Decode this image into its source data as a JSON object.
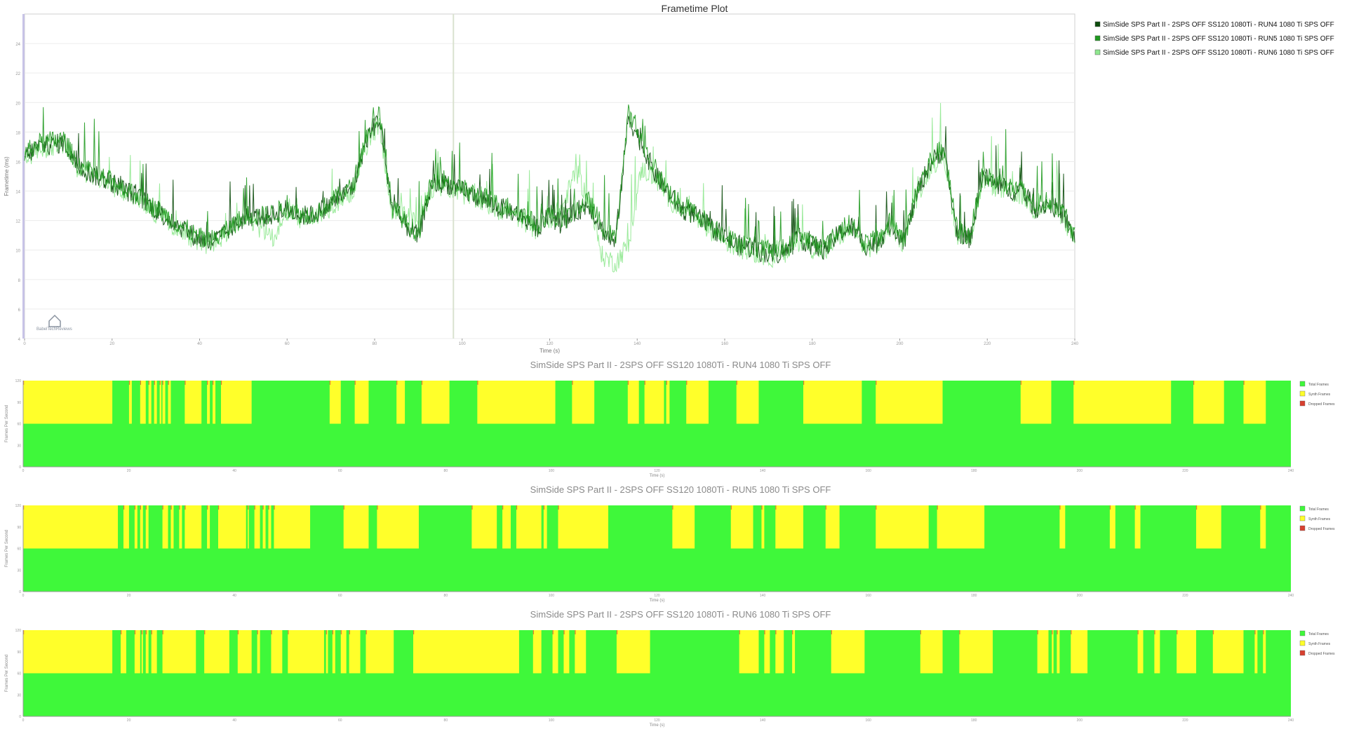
{
  "chart_data": [
    {
      "type": "line",
      "title": "Frametime Plot",
      "xlabel": "Time (s)",
      "ylabel": "Frametime (ms)",
      "xlim": [
        0,
        240
      ],
      "ylim": [
        4,
        26
      ],
      "x_ticks": [
        "0",
        "20",
        "40",
        "60",
        "80",
        "100",
        "120",
        "140",
        "160",
        "180",
        "200",
        "220",
        "240"
      ],
      "y_ticks": [
        "4",
        "6",
        "8",
        "10",
        "12",
        "14",
        "16",
        "18",
        "20",
        "22",
        "24"
      ],
      "grid": true,
      "legend_position": "top-right",
      "watermark": "BabelTechReviews",
      "series": [
        {
          "name": "SimSide SPS Part II - 2SPS OFF SS120 1080Ti - RUN4 1080 Ti SPS OFF",
          "color": "#0c4d0c",
          "x": [
            0,
            3,
            6,
            9,
            12,
            15,
            18,
            21,
            24,
            27,
            30,
            33,
            36,
            39,
            42,
            45,
            48,
            51,
            54,
            57,
            60,
            63,
            66,
            69,
            72,
            75,
            78,
            81,
            84,
            87,
            90,
            93,
            96,
            99,
            102,
            105,
            108,
            111,
            114,
            117,
            120,
            123,
            126,
            129,
            132,
            135,
            138,
            141,
            144,
            147,
            150,
            153,
            156,
            159,
            162,
            165,
            168,
            171,
            174,
            177,
            180,
            183,
            186,
            189,
            192,
            195,
            198,
            201,
            204,
            207,
            210,
            213,
            216,
            219,
            222,
            225,
            228,
            231,
            234,
            237,
            240
          ],
          "y": [
            16.3,
            17.0,
            17.1,
            17.3,
            15.8,
            15.2,
            14.8,
            14.4,
            13.9,
            13.4,
            12.7,
            12.1,
            11.5,
            10.9,
            10.5,
            10.9,
            11.7,
            12.3,
            12.2,
            12.4,
            12.8,
            12.3,
            12.4,
            12.9,
            13.6,
            14.2,
            17.4,
            19.0,
            12.8,
            11.7,
            10.9,
            14.4,
            14.6,
            14.1,
            13.8,
            13.4,
            12.9,
            12.7,
            12.2,
            11.5,
            12.3,
            11.7,
            12.6,
            13.1,
            11.4,
            10.4,
            19.0,
            17.2,
            15.2,
            13.9,
            12.8,
            12.4,
            11.7,
            11.1,
            10.4,
            10.2,
            9.9,
            9.7,
            9.9,
            10.8,
            10.3,
            10.0,
            11.1,
            11.6,
            10.3,
            10.5,
            11.8,
            10.6,
            13.9,
            15.9,
            16.8,
            11.3,
            10.7,
            15.0,
            14.4,
            14.1,
            13.9,
            12.8,
            13.2,
            12.5,
            10.8
          ]
        },
        {
          "name": "SimSide SPS Part II - 2SPS OFF SS120 1080Ti - RUN5 1080 Ti SPS OFF",
          "color": "#1f9a1f",
          "x": [
            0,
            3,
            6,
            9,
            12,
            15,
            18,
            21,
            24,
            27,
            30,
            33,
            36,
            39,
            42,
            45,
            48,
            51,
            54,
            57,
            60,
            63,
            66,
            69,
            72,
            75,
            78,
            81,
            84,
            87,
            90,
            93,
            96,
            99,
            102,
            105,
            108,
            111,
            114,
            117,
            120,
            123,
            126,
            129,
            132,
            135,
            138,
            141,
            144,
            147,
            150,
            153,
            156,
            159,
            162,
            165,
            168,
            171,
            174,
            177,
            180,
            183,
            186,
            189,
            192,
            195,
            198,
            201,
            204,
            207,
            210,
            213,
            216,
            219,
            222,
            225,
            228,
            231,
            234,
            237,
            240
          ],
          "y": [
            16.5,
            17.2,
            17.4,
            17.5,
            15.9,
            15.3,
            14.9,
            14.5,
            14.0,
            13.5,
            12.8,
            12.2,
            11.6,
            11.0,
            10.6,
            11.0,
            11.8,
            12.4,
            12.3,
            12.5,
            12.9,
            12.4,
            12.5,
            13.0,
            13.7,
            14.3,
            17.6,
            19.3,
            12.9,
            11.9,
            11.1,
            14.6,
            14.8,
            14.3,
            13.9,
            13.6,
            13.1,
            12.9,
            12.4,
            11.7,
            12.5,
            11.9,
            12.8,
            13.3,
            11.6,
            10.7,
            19.2,
            17.4,
            15.4,
            14.1,
            13.0,
            12.6,
            11.9,
            11.3,
            10.6,
            10.4,
            10.1,
            9.9,
            10.1,
            11.0,
            10.5,
            10.2,
            11.3,
            11.8,
            10.5,
            10.7,
            12.0,
            10.8,
            14.1,
            16.1,
            17.0,
            11.5,
            10.9,
            15.2,
            14.6,
            14.3,
            14.1,
            13.0,
            13.4,
            12.7,
            11.0
          ]
        },
        {
          "name": "SimSide SPS Part II - 2SPS OFF SS120 1080Ti - RUN6 1080 Ti SPS OFF",
          "color": "#8fe88f",
          "x": [
            0,
            3,
            6,
            9,
            12,
            15,
            18,
            21,
            24,
            27,
            30,
            33,
            36,
            39,
            42,
            45,
            48,
            51,
            54,
            57,
            60,
            63,
            66,
            69,
            72,
            75,
            78,
            81,
            84,
            87,
            90,
            93,
            96,
            99,
            102,
            105,
            108,
            111,
            114,
            117,
            120,
            123,
            126,
            129,
            132,
            135,
            138,
            141,
            144,
            147,
            150,
            153,
            156,
            159,
            162,
            165,
            168,
            171,
            174,
            177,
            180,
            183,
            186,
            189,
            192,
            195,
            198,
            201,
            204,
            207,
            210,
            213,
            216,
            219,
            222,
            225,
            228,
            231,
            234,
            237,
            240
          ],
          "y": [
            16.1,
            16.8,
            17.0,
            17.1,
            15.6,
            15.0,
            14.6,
            14.2,
            13.7,
            13.2,
            12.5,
            11.9,
            11.3,
            10.7,
            10.3,
            10.8,
            11.5,
            12.1,
            11.4,
            10.9,
            12.6,
            12.1,
            12.2,
            12.7,
            13.4,
            14.0,
            17.0,
            18.6,
            12.5,
            12.4,
            11.7,
            14.2,
            14.4,
            13.9,
            13.6,
            13.2,
            12.7,
            12.5,
            12.0,
            11.3,
            12.1,
            12.9,
            15.4,
            13.2,
            9.6,
            9.1,
            10.4,
            15.5,
            14.9,
            13.6,
            12.6,
            12.2,
            11.5,
            10.9,
            10.2,
            10.0,
            9.7,
            9.5,
            9.7,
            10.6,
            10.1,
            9.8,
            10.9,
            11.4,
            10.1,
            10.3,
            11.6,
            10.4,
            13.7,
            15.6,
            16.5,
            11.1,
            10.5,
            14.8,
            14.2,
            13.9,
            13.7,
            12.6,
            13.0,
            12.3,
            10.6
          ]
        }
      ]
    },
    {
      "type": "area",
      "title": "SimSide SPS Part II - 2SPS OFF SS120 1080Ti - RUN4 1080 Ti SPS OFF",
      "xlabel": "Time (s)",
      "ylabel": "Frames Per Second",
      "xlim": [
        0,
        240
      ],
      "ylim": [
        0,
        120
      ],
      "x_ticks": [
        "0",
        "20",
        "40",
        "60",
        "80",
        "100",
        "120",
        "140",
        "160",
        "180",
        "200",
        "220",
        "240"
      ],
      "y_ticks": [
        "0",
        "30",
        "60",
        "90",
        "120"
      ],
      "levels": {
        "full": 120,
        "half": 60
      },
      "legend": [
        "Total Frames",
        "Synth Frames",
        "Dropped Frames"
      ],
      "legend_position": "right",
      "colors": {
        "total": "#3ff83a",
        "synth": "#ffff2a",
        "dropped": "#d84030"
      },
      "synth_intervals": [
        [
          0,
          32
        ],
        [
          38,
          39
        ],
        [
          42,
          44
        ],
        [
          45,
          46
        ],
        [
          47,
          48
        ],
        [
          49,
          49.6
        ],
        [
          50,
          51
        ],
        [
          52,
          53
        ],
        [
          58,
          64
        ],
        [
          66,
          67
        ],
        [
          68,
          69
        ],
        [
          71,
          82
        ],
        [
          110,
          114
        ],
        [
          119,
          124
        ],
        [
          134,
          137
        ],
        [
          143,
          153
        ],
        [
          163,
          191
        ],
        [
          197,
          205
        ],
        [
          217,
          221
        ],
        [
          223,
          230
        ],
        [
          230.8,
          232
        ],
        [
          238,
          246
        ],
        [
          256,
          264
        ],
        [
          280,
          301
        ],
        [
          306,
          330
        ],
        [
          358,
          369
        ],
        [
          377,
          412
        ],
        [
          420,
          431
        ],
        [
          438,
          446
        ]
      ],
      "synth_intervals_scale": 455
    },
    {
      "type": "area",
      "title": "SimSide SPS Part II - 2SPS OFF SS120 1080Ti - RUN5 1080 Ti SPS OFF",
      "xlabel": "Time (s)",
      "ylabel": "Frames Per Second",
      "xlim": [
        0,
        240
      ],
      "ylim": [
        0,
        120
      ],
      "x_ticks": [
        "0",
        "20",
        "40",
        "60",
        "80",
        "100",
        "120",
        "140",
        "160",
        "180",
        "200",
        "220",
        "240"
      ],
      "y_ticks": [
        "0",
        "30",
        "60",
        "90",
        "120"
      ],
      "levels": {
        "full": 120,
        "half": 60
      },
      "legend": [
        "Total Frames",
        "Synth Frames",
        "Dropped Frames"
      ],
      "legend_position": "right",
      "colors": {
        "total": "#3ff83a",
        "synth": "#ffff2a",
        "dropped": "#d84030"
      },
      "synth_intervals": [
        [
          0,
          34
        ],
        [
          36,
          38
        ],
        [
          40,
          41
        ],
        [
          42,
          43
        ],
        [
          44,
          45
        ],
        [
          50,
          52
        ],
        [
          53,
          54
        ],
        [
          56,
          57
        ],
        [
          58,
          64
        ],
        [
          66,
          67
        ],
        [
          70,
          80
        ],
        [
          80.6,
          81
        ],
        [
          83,
          85
        ],
        [
          86,
          87
        ],
        [
          88,
          89
        ],
        [
          90,
          103
        ],
        [
          115,
          124
        ],
        [
          127,
          142
        ],
        [
          161,
          170
        ],
        [
          172,
          175
        ],
        [
          177,
          186
        ],
        [
          186.8,
          188
        ],
        [
          192,
          210
        ],
        [
          233,
          241
        ],
        [
          254,
          262
        ],
        [
          265,
          266
        ],
        [
          270,
          280
        ],
        [
          288,
          293
        ],
        [
          306,
          325
        ],
        [
          328,
          345
        ],
        [
          372,
          374
        ],
        [
          390,
          392
        ],
        [
          399,
          401
        ],
        [
          421,
          430
        ],
        [
          444,
          446
        ]
      ],
      "synth_intervals_scale": 455
    },
    {
      "type": "area",
      "title": "SimSide SPS Part II - 2SPS OFF SS120 1080Ti - RUN6 1080 Ti SPS OFF",
      "xlabel": "Time (s)",
      "ylabel": "Frames Per Second",
      "xlim": [
        0,
        240
      ],
      "ylim": [
        0,
        120
      ],
      "x_ticks": [
        "0",
        "20",
        "40",
        "60",
        "80",
        "100",
        "120",
        "140",
        "160",
        "180",
        "200",
        "220",
        "240"
      ],
      "y_ticks": [
        "0",
        "30",
        "60",
        "90",
        "120"
      ],
      "levels": {
        "full": 120,
        "half": 60
      },
      "legend": [
        "Total Frames",
        "Synth Frames",
        "Dropped Frames"
      ],
      "legend_position": "right",
      "colors": {
        "total": "#3ff83a",
        "synth": "#ffff2a",
        "dropped": "#d84030"
      },
      "synth_intervals": [
        [
          0,
          32
        ],
        [
          35,
          37
        ],
        [
          40,
          42
        ],
        [
          42.5,
          43
        ],
        [
          44,
          45
        ],
        [
          46,
          48
        ],
        [
          50,
          62
        ],
        [
          65,
          74
        ],
        [
          77,
          82
        ],
        [
          84,
          85
        ],
        [
          89,
          93
        ],
        [
          95,
          108
        ],
        [
          108.7,
          109.4
        ],
        [
          111,
          112
        ],
        [
          114,
          116
        ],
        [
          117,
          121
        ],
        [
          123,
          133
        ],
        [
          140,
          178
        ],
        [
          183,
          186
        ],
        [
          190,
          192
        ],
        [
          194,
          196
        ],
        [
          198,
          202
        ],
        [
          213,
          225
        ],
        [
          257,
          264
        ],
        [
          266,
          268
        ],
        [
          270,
          273
        ],
        [
          276,
          277
        ],
        [
          290,
          302
        ],
        [
          322,
          330
        ],
        [
          336,
          348
        ],
        [
          364,
          368
        ],
        [
          369.2,
          369.8
        ],
        [
          371,
          372
        ],
        [
          376,
          382
        ],
        [
          400,
          402
        ],
        [
          406,
          408
        ],
        [
          414,
          421
        ],
        [
          427,
          438
        ],
        [
          442,
          443
        ],
        [
          445,
          446
        ]
      ],
      "synth_intervals_scale": 455
    }
  ]
}
